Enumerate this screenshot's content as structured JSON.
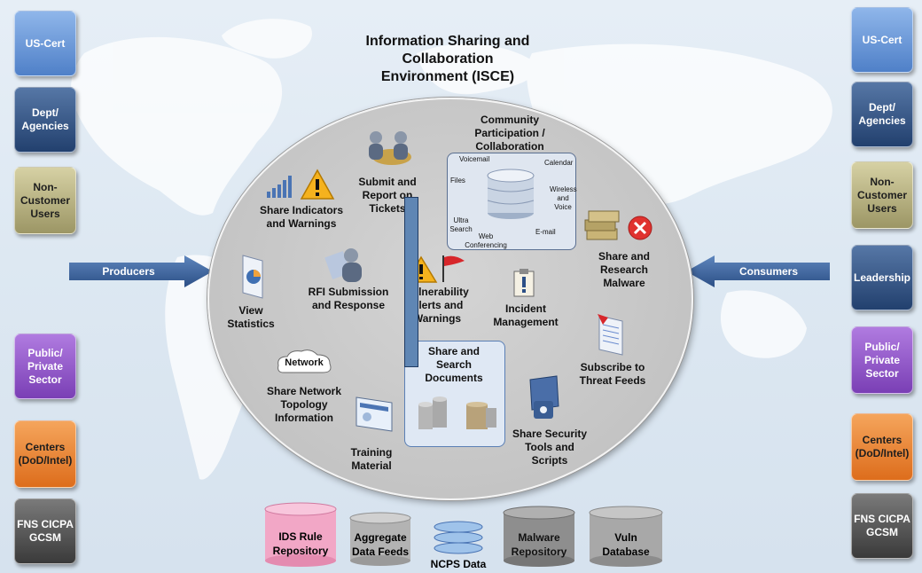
{
  "title": "Information Sharing and Collaboration Environment (ISCE)",
  "left_boxes": [
    {
      "label": "US-Cert",
      "style": "b-blue"
    },
    {
      "label": "Dept/ Agencies",
      "style": "b-navy"
    },
    {
      "label": "Non- Customer Users",
      "style": "b-olive"
    },
    {
      "label": "Public/ Private Sector",
      "style": "b-purple"
    },
    {
      "label": "Centers (DoD/Intel)",
      "style": "b-orange"
    },
    {
      "label": "FNS CICPA GCSM",
      "style": "b-gray"
    }
  ],
  "right_boxes": [
    {
      "label": "US-Cert",
      "style": "b-blue"
    },
    {
      "label": "Dept/ Agencies",
      "style": "b-navy"
    },
    {
      "label": "Non- Customer Users",
      "style": "b-olive"
    },
    {
      "label": "Leadership",
      "style": "b-navy"
    },
    {
      "label": "Public/ Private Sector",
      "style": "b-purple"
    },
    {
      "label": "Centers (DoD/Intel)",
      "style": "b-orange"
    },
    {
      "label": "FNS CICPA GCSM",
      "style": "b-gray"
    }
  ],
  "arrows": {
    "producers": "Producers",
    "consumers": "Consumers"
  },
  "features": {
    "share_indicators": "Share Indicators and Warnings",
    "submit_report": "Submit and Report on Tickets",
    "community": "Community Participation / Collaboration",
    "share_research_malware": "Share and Research Malware",
    "view_statistics": "View Statistics",
    "rfi": "RFI Submission and Response",
    "vulnerability": "Vulnerability Alerts and Warnings",
    "incident": "Incident Management",
    "subscribe": "Subscribe to Threat Feeds",
    "network_badge": "Network",
    "network_topology": "Share Network Topology Information",
    "share_search_docs": "Share and Search Documents",
    "training": "Training Material",
    "security_tools": "Share Security Tools and Scripts"
  },
  "collab_labels": {
    "voicemail": "Voicemail",
    "calendar": "Calendar",
    "files": "Files",
    "wireless": "Wireless and Voice",
    "ultra_search": "Ultra Search",
    "web_conf": "Web Conferencing",
    "email": "E-mail"
  },
  "databases": [
    {
      "label": "IDS Rule Repository",
      "color": "#f2a7c6"
    },
    {
      "label": "Aggregate Data Feeds",
      "color": "#b3b3b3"
    },
    {
      "label": "NCPS Data",
      "color": "#9fc3ea"
    },
    {
      "label": "Malware Repository",
      "color": "#8e8e8e"
    },
    {
      "label": "Vuln Database",
      "color": "#a8a8a8"
    }
  ]
}
